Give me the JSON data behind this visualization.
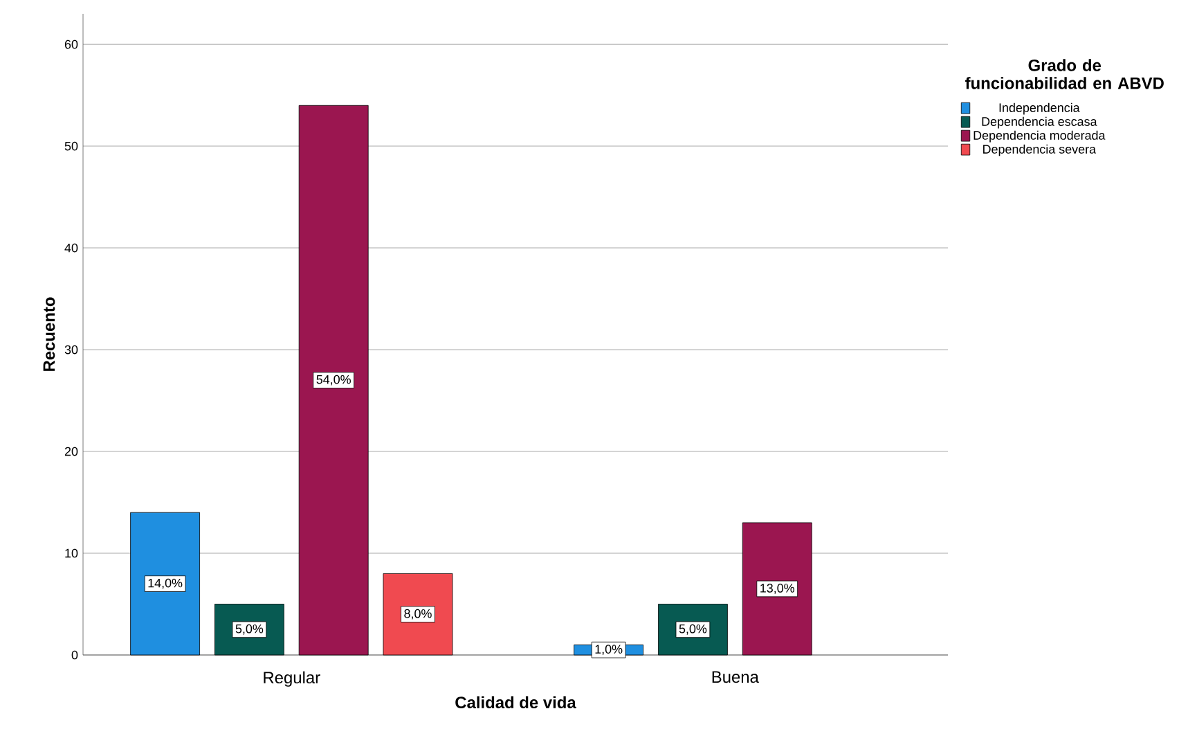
{
  "chart_data": {
    "type": "bar",
    "xlabel": "Calidad de vida",
    "ylabel": "Recuento",
    "legend_title": "Grado de funcionabilidad en ABVD",
    "categories": [
      "Regular",
      "Buena"
    ],
    "series": [
      {
        "name": "Independencia",
        "color": "#1f8fe0",
        "values": [
          14,
          1
        ],
        "value_labels": [
          "14,0%",
          "1,0%"
        ]
      },
      {
        "name": "Dependencia escasa",
        "color": "#075a52",
        "values": [
          5,
          5
        ],
        "value_labels": [
          "5,0%",
          "5,0%"
        ]
      },
      {
        "name": "Dependencia moderada",
        "color": "#9b1650",
        "values": [
          54,
          13
        ],
        "value_labels": [
          "54,0%",
          "13,0%"
        ]
      },
      {
        "name": "Dependencia severa",
        "color": "#f04a50",
        "values": [
          8,
          null
        ],
        "value_labels": [
          "8,0%",
          null
        ]
      }
    ],
    "ylim": [
      0,
      63
    ],
    "yticks": [
      0,
      10,
      20,
      30,
      40,
      50,
      60
    ],
    "grid": "y",
    "legend": "right"
  }
}
